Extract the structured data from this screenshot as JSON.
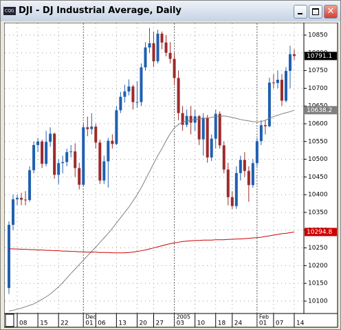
{
  "chart_data": {
    "type": "candlestick",
    "title": "DJI - DJ Industrial Average, Daily",
    "categories": [
      null,
      null,
      "08",
      null,
      null,
      null,
      null,
      "15",
      null,
      null,
      null,
      null,
      "22",
      null,
      null,
      null,
      null,
      null,
      "01",
      null,
      null,
      "06",
      null,
      null,
      null,
      null,
      "13",
      null,
      null,
      null,
      null,
      "20",
      null,
      null,
      null,
      "27",
      null,
      null,
      null,
      null,
      "03",
      null,
      null,
      null,
      null,
      "10",
      null,
      null,
      null,
      null,
      "18",
      null,
      null,
      null,
      "24",
      null,
      null,
      null,
      null,
      null,
      "01",
      null,
      null,
      null,
      "07",
      null,
      null,
      null,
      null,
      "14"
    ],
    "month_labels": [
      {
        "index": 18,
        "label": "Dec"
      },
      {
        "index": 40,
        "label": "2005"
      },
      {
        "index": 60,
        "label": "Feb"
      }
    ],
    "open": [
      10137,
      10315,
      10387,
      10391,
      10386,
      10385,
      10469,
      10540,
      10550,
      10487,
      10549,
      10572,
      10456,
      10489,
      10492,
      10520,
      10522,
      10475,
      10428,
      10590,
      10585,
      10592,
      10547,
      10440,
      10494,
      10552,
      10543,
      10638,
      10676,
      10691,
      10705,
      10661,
      10661,
      10759,
      10815,
      10827,
      10776,
      10854,
      10829,
      10800,
      10783,
      10729,
      10630,
      10597,
      10622,
      10603,
      10621,
      10556,
      10617,
      10505,
      10558,
      10628,
      10539,
      10471,
      10393,
      10368,
      10461,
      10498,
      10467,
      10427,
      10489,
      10551,
      10596,
      10593,
      10716,
      10715,
      10724,
      10665,
      10749,
      10796
    ],
    "high": [
      10325,
      10400,
      10400,
      10405,
      10410,
      10480,
      10550,
      10560,
      10555,
      10580,
      10590,
      10575,
      10500,
      10510,
      10530,
      10540,
      10545,
      10490,
      10600,
      10620,
      10630,
      10600,
      10555,
      10510,
      10560,
      10570,
      10650,
      10690,
      10710,
      10725,
      10710,
      10720,
      10770,
      10830,
      10870,
      10860,
      10865,
      10860,
      10850,
      10830,
      10800,
      10750,
      10650,
      10640,
      10650,
      10640,
      10625,
      10630,
      10625,
      10570,
      10640,
      10635,
      10550,
      10490,
      10410,
      10480,
      10510,
      10520,
      10480,
      10500,
      10560,
      10610,
      10610,
      10730,
      10740,
      10750,
      10740,
      10760,
      10820,
      10810
    ],
    "low": [
      10120,
      10300,
      10370,
      10370,
      10370,
      10380,
      10460,
      10520,
      10475,
      10480,
      10535,
      10445,
      10430,
      10460,
      10480,
      10505,
      10450,
      10415,
      10425,
      10565,
      10570,
      10530,
      10430,
      10430,
      10420,
      10530,
      10540,
      10630,
      10660,
      10680,
      10640,
      10645,
      10650,
      10750,
      10800,
      10760,
      10770,
      10810,
      10790,
      10770,
      10710,
      10610,
      10580,
      10590,
      10570,
      10580,
      10540,
      10510,
      10490,
      10495,
      10530,
      10530,
      10460,
      10370,
      10360,
      10360,
      10440,
      10450,
      10380,
      10420,
      10480,
      10540,
      10570,
      10590,
      10700,
      10700,
      10650,
      10660,
      10700,
      10780
    ],
    "close": [
      10315,
      10387,
      10391,
      10386,
      10385,
      10469,
      10540,
      10550,
      10487,
      10549,
      10572,
      10456,
      10489,
      10492,
      10520,
      10522,
      10475,
      10428,
      10590,
      10585,
      10592,
      10547,
      10440,
      10494,
      10552,
      10543,
      10638,
      10676,
      10691,
      10705,
      10661,
      10661,
      10759,
      10815,
      10827,
      10776,
      10854,
      10829,
      10800,
      10783,
      10729,
      10630,
      10597,
      10622,
      10603,
      10621,
      10556,
      10617,
      10505,
      10558,
      10628,
      10539,
      10471,
      10393,
      10368,
      10461,
      10498,
      10467,
      10427,
      10489,
      10551,
      10596,
      10593,
      10716,
      10715,
      10724,
      10665,
      10749,
      10796,
      10791.1
    ],
    "up_color": "#1f5fb0",
    "down_color": "#9c2a2a",
    "overlays": [
      {
        "color": "#808080",
        "values": [
          10072,
          10074,
          10077,
          10080,
          10084,
          10088,
          10092,
          10098,
          10105,
          10112,
          10120,
          10130,
          10140,
          10152,
          10165,
          10178,
          10190,
          10203,
          10215,
          10228,
          10240,
          10252,
          10265,
          10278,
          10291,
          10305,
          10320,
          10335,
          10350,
          10365,
          10382,
          10400,
          10420,
          10442,
          10465,
          10488,
          10510,
          10530,
          10552,
          10572,
          10588,
          10598,
          10605,
          10608,
          10610,
          10612,
          10614,
          10615,
          10616,
          10618,
          10620,
          10621,
          10622,
          10620,
          10618,
          10615,
          10612,
          10610,
          10608,
          10606,
          10605,
          10606,
          10610,
          10615,
          10620,
          10624,
          10628,
          10631,
          10634,
          10638.2
        ]
      },
      {
        "color": "#cc0000",
        "values": [
          10248,
          10247,
          10247,
          10246,
          10246,
          10245,
          10245,
          10244,
          10244,
          10243,
          10243,
          10242,
          10242,
          10241,
          10241,
          10240,
          10240,
          10239,
          10239,
          10238,
          10238,
          10238,
          10237,
          10237,
          10237,
          10236,
          10236,
          10236,
          10236,
          10237,
          10238,
          10240,
          10242,
          10244,
          10247,
          10250,
          10253,
          10256,
          10259,
          10262,
          10264,
          10266,
          10268,
          10269,
          10270,
          10271,
          10271,
          10272,
          10272,
          10272,
          10273,
          10273,
          10273,
          10274,
          10274,
          10275,
          10275,
          10276,
          10277,
          10278,
          10279,
          10280,
          10282,
          10284,
          10286,
          10288,
          10290,
          10291,
          10293,
          10294.8
        ]
      }
    ],
    "last_labels": [
      {
        "value": 10791.1,
        "label": "10791.1",
        "color": "#000000"
      },
      {
        "value": 10638.2,
        "label": "10638.2",
        "color": "#808080"
      },
      {
        "value": 10294.8,
        "label": "10294.8",
        "color": "#cc0000"
      }
    ],
    "ylim": [
      10065,
      10883
    ],
    "yticks": [
      10100,
      10150,
      10200,
      10250,
      10300,
      10350,
      10400,
      10450,
      10500,
      10550,
      10600,
      10650,
      10700,
      10750,
      10800,
      10850
    ],
    "grid": true
  }
}
